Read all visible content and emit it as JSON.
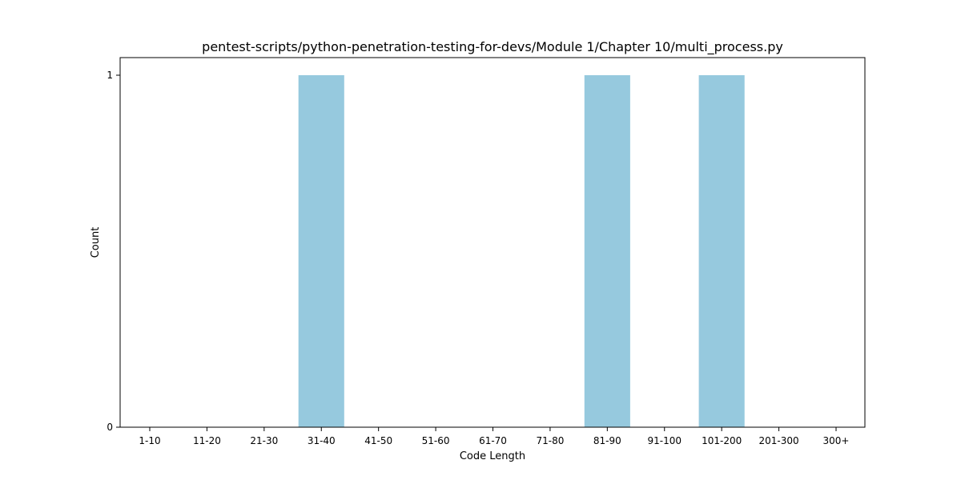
{
  "chart_data": {
    "type": "bar",
    "title": "pentest-scripts/python-penetration-testing-for-devs/Module 1/Chapter 10/multi_process.py",
    "xlabel": "Code Length",
    "ylabel": "Count",
    "categories": [
      "1-10",
      "11-20",
      "21-30",
      "31-40",
      "41-50",
      "51-60",
      "61-70",
      "71-80",
      "81-90",
      "91-100",
      "101-200",
      "201-300",
      "300+"
    ],
    "values": [
      0,
      0,
      0,
      1,
      0,
      0,
      0,
      0,
      1,
      0,
      1,
      0,
      0
    ],
    "ylim": [
      0,
      1
    ],
    "yticks": [
      0,
      1
    ],
    "grid": false,
    "colors": {
      "bar": "#96c9de",
      "axis": "#000000"
    }
  }
}
